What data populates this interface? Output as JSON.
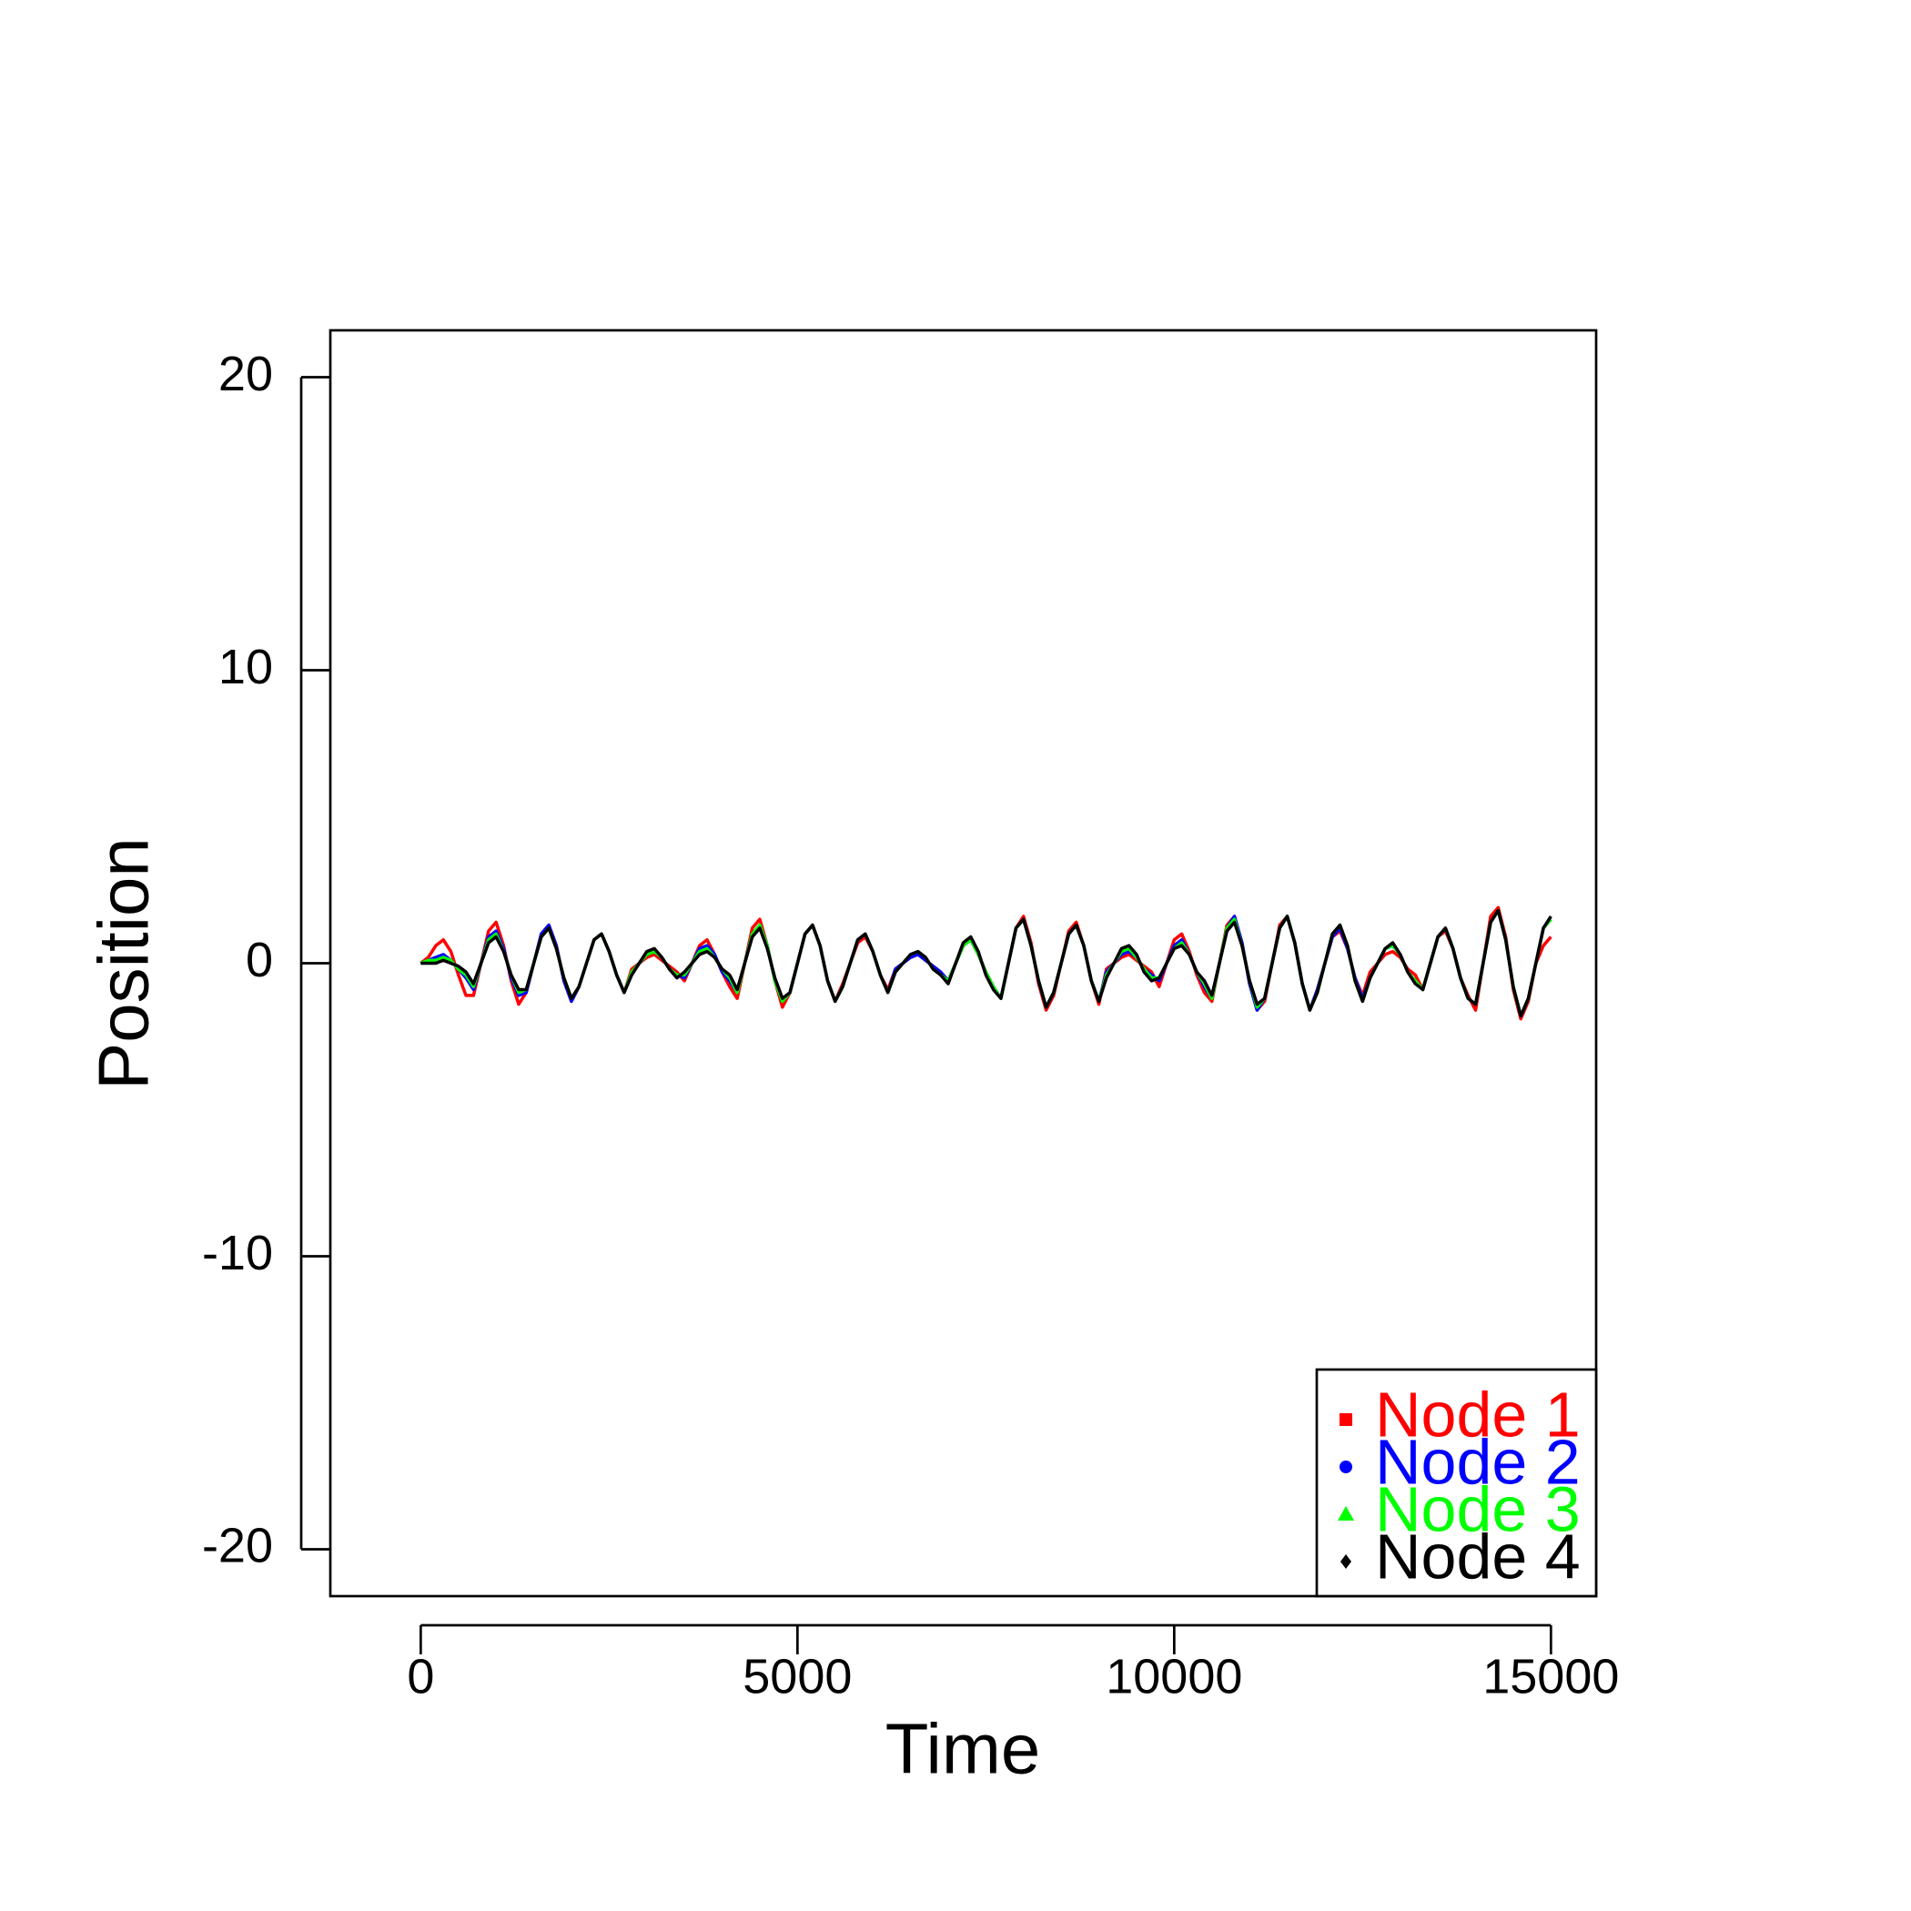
{
  "chart_data": {
    "type": "line",
    "x_label": "Time",
    "y_label": "Position",
    "x": [
      0,
      100,
      200,
      300,
      400,
      500,
      600,
      700,
      800,
      900,
      1000,
      1100,
      1200,
      1300,
      1400,
      1500,
      1600,
      1700,
      1800,
      1900,
      2000,
      2100,
      2200,
      2300,
      2400,
      2500,
      2600,
      2700,
      2800,
      2900,
      3000,
      3100,
      3200,
      3300,
      3400,
      3500,
      3600,
      3700,
      3800,
      3900,
      4000,
      4100,
      4200,
      4300,
      4400,
      4500,
      4600,
      4700,
      4800,
      4900,
      5000,
      5100,
      5200,
      5300,
      5400,
      5500,
      5600,
      5700,
      5800,
      5900,
      6000,
      6100,
      6200,
      6300,
      6400,
      6500,
      6600,
      6700,
      6800,
      6900,
      7000,
      7100,
      7200,
      7300,
      7400,
      7500,
      7600,
      7700,
      7800,
      7900,
      8000,
      8100,
      8200,
      8300,
      8400,
      8500,
      8600,
      8700,
      8800,
      8900,
      9000,
      9100,
      9200,
      9300,
      9400,
      9500,
      9600,
      9700,
      9800,
      9900,
      10000,
      10100,
      10200,
      10300,
      10400,
      10500,
      10600,
      10700,
      10800,
      10900,
      11000,
      11100,
      11200,
      11300,
      11400,
      11500,
      11600,
      11700,
      11800,
      11900,
      12000,
      12100,
      12200,
      12300,
      12400,
      12500,
      12600,
      12700,
      12800,
      12900,
      13000,
      13100,
      13200,
      13300,
      13400,
      13500,
      13600,
      13700,
      13800,
      13900,
      14000,
      14100,
      14200,
      14300,
      14400,
      14500,
      14600,
      14700,
      14800,
      14900,
      15000
    ],
    "series": [
      {
        "name": "Node 1",
        "color": "#ff0000",
        "values": [
          0,
          0.2,
          0.6,
          0.8,
          0.4,
          -0.4,
          -1.1,
          -1.1,
          0,
          1.1,
          1.4,
          0.6,
          -0.6,
          -1.4,
          -1.0,
          0,
          1.0,
          1.3,
          0.6,
          -0.6,
          -1.3,
          -0.8,
          0,
          0.8,
          1.0,
          0.4,
          -0.4,
          -1.0,
          -0.2,
          0,
          0.2,
          0.3,
          0.1,
          -0.1,
          -0.3,
          -0.6,
          0,
          0.6,
          0.8,
          0.3,
          -0.3,
          -0.8,
          -1.2,
          0,
          1.2,
          1.5,
          0.6,
          -0.6,
          -1.5,
          -1.0,
          0,
          1.0,
          1.3,
          0.6,
          -0.6,
          -1.3,
          -0.7,
          0,
          0.7,
          0.9,
          0.4,
          -0.4,
          -0.9,
          -0.2,
          0,
          0.2,
          0.3,
          0.1,
          -0.1,
          -0.3,
          -0.6,
          0,
          0.6,
          0.8,
          0.3,
          -0.3,
          -0.8,
          -1.2,
          0,
          1.2,
          1.6,
          0.7,
          -0.7,
          -1.6,
          -1.1,
          0,
          1.1,
          1.4,
          0.6,
          -0.6,
          -1.4,
          -0.2,
          0,
          0.2,
          0.3,
          0.1,
          -0.1,
          -0.3,
          -0.8,
          0,
          0.8,
          1.0,
          0.4,
          -0.4,
          -1.0,
          -1.3,
          0,
          1.3,
          1.6,
          0.7,
          -0.7,
          -1.6,
          -1.3,
          0,
          1.3,
          1.6,
          0.7,
          -0.7,
          -1.6,
          -0.9,
          0,
          0.9,
          1.1,
          0.5,
          -0.5,
          -1.1,
          -0.3,
          0,
          0.3,
          0.4,
          0.2,
          -0.2,
          -0.4,
          -0.9,
          0,
          0.9,
          1.1,
          0.5,
          -0.5,
          -1.1,
          -1.6,
          0,
          1.6,
          1.9,
          0.9,
          -0.9,
          -1.9,
          -1.3,
          0,
          0.6,
          0.9
        ]
      },
      {
        "name": "Node 2",
        "color": "#0000ff",
        "values": [
          0,
          0.1,
          0.2,
          0.3,
          0.1,
          -0.2,
          -0.5,
          -0.9,
          0,
          0.9,
          1.1,
          0.5,
          -0.5,
          -1.1,
          -1.0,
          0,
          1.0,
          1.3,
          0.6,
          -0.6,
          -1.3,
          -0.8,
          0,
          0.8,
          1.0,
          0.4,
          -0.4,
          -1.0,
          -0.3,
          0,
          0.3,
          0.4,
          0.2,
          -0.2,
          -0.4,
          -0.5,
          0,
          0.5,
          0.6,
          0.3,
          -0.3,
          -0.6,
          -1.0,
          0,
          1.0,
          1.3,
          0.6,
          -0.6,
          -1.3,
          -1.0,
          0,
          1.0,
          1.3,
          0.6,
          -0.6,
          -1.3,
          -0.8,
          0,
          0.8,
          1.0,
          0.4,
          -0.4,
          -1.0,
          -0.2,
          0,
          0.2,
          0.3,
          0.1,
          -0.1,
          -0.3,
          -0.6,
          0,
          0.6,
          0.8,
          0.3,
          -0.3,
          -0.8,
          -1.2,
          0,
          1.2,
          1.5,
          0.6,
          -0.6,
          -1.5,
          -1.0,
          0,
          1.0,
          1.3,
          0.6,
          -0.6,
          -1.3,
          -0.3,
          0,
          0.3,
          0.4,
          0.2,
          -0.2,
          -0.4,
          -0.6,
          0,
          0.6,
          0.8,
          0.3,
          -0.3,
          -0.8,
          -1.2,
          0,
          1.2,
          1.6,
          0.7,
          -0.7,
          -1.6,
          -1.2,
          0,
          1.2,
          1.6,
          0.7,
          -0.7,
          -1.6,
          -0.9,
          0,
          0.9,
          1.2,
          0.5,
          -0.5,
          -1.2,
          -0.5,
          0,
          0.5,
          0.6,
          0.3,
          -0.3,
          -0.6,
          -0.9,
          0,
          0.9,
          1.2,
          0.5,
          -0.5,
          -1.2,
          -1.4,
          0,
          1.4,
          1.8,
          0.8,
          -0.8,
          -1.8,
          -1.2,
          0,
          1.2,
          1.5
        ]
      },
      {
        "name": "Node 3",
        "color": "#00ff00",
        "values": [
          0,
          0.1,
          0.1,
          0.2,
          0.1,
          -0.2,
          -0.4,
          -0.8,
          0,
          0.8,
          1.0,
          0.4,
          -0.4,
          -1.0,
          -0.9,
          0,
          0.9,
          1.2,
          0.5,
          -0.5,
          -1.2,
          -0.8,
          0,
          0.8,
          1.0,
          0.4,
          -0.4,
          -1.0,
          -0.3,
          0,
          0.3,
          0.4,
          0.2,
          -0.2,
          -0.4,
          -0.4,
          0,
          0.4,
          0.5,
          0.2,
          -0.2,
          -0.5,
          -1.0,
          0,
          1.0,
          1.3,
          0.6,
          -0.6,
          -1.3,
          -1.0,
          0,
          1.0,
          1.3,
          0.6,
          -0.6,
          -1.3,
          -0.8,
          0,
          0.8,
          1.0,
          0.4,
          -0.4,
          -1.0,
          -0.3,
          0,
          0.3,
          0.4,
          0.2,
          -0.2,
          -0.4,
          -0.6,
          0,
          0.6,
          0.8,
          0.3,
          -0.3,
          -0.8,
          -1.2,
          0,
          1.2,
          1.5,
          0.6,
          -0.6,
          -1.5,
          -1.0,
          0,
          1.0,
          1.3,
          0.6,
          -0.6,
          -1.3,
          -0.4,
          0,
          0.4,
          0.5,
          0.2,
          -0.2,
          -0.5,
          -0.5,
          0,
          0.5,
          0.7,
          0.3,
          -0.3,
          -0.7,
          -1.2,
          0,
          1.2,
          1.5,
          0.6,
          -0.6,
          -1.5,
          -1.2,
          0,
          1.2,
          1.6,
          0.7,
          -0.7,
          -1.6,
          -1.0,
          0,
          1.0,
          1.3,
          0.6,
          -0.6,
          -1.3,
          -0.5,
          0,
          0.5,
          0.6,
          0.3,
          -0.3,
          -0.6,
          -0.9,
          0,
          0.9,
          1.2,
          0.5,
          -0.5,
          -1.2,
          -1.4,
          0,
          1.4,
          1.8,
          0.8,
          -0.8,
          -1.8,
          -1.2,
          0,
          1.2,
          1.5
        ]
      },
      {
        "name": "Node 4",
        "color": "#000000",
        "values": [
          0,
          0,
          0,
          0.1,
          0,
          -0.1,
          -0.3,
          -0.7,
          0,
          0.7,
          0.9,
          0.4,
          -0.4,
          -0.9,
          -0.9,
          0,
          0.9,
          1.2,
          0.5,
          -0.5,
          -1.2,
          -0.8,
          0,
          0.8,
          1.0,
          0.4,
          -0.4,
          -1.0,
          -0.4,
          0,
          0.4,
          0.5,
          0.2,
          -0.2,
          -0.5,
          -0.3,
          0,
          0.3,
          0.4,
          0.2,
          -0.2,
          -0.4,
          -0.9,
          0,
          0.9,
          1.2,
          0.5,
          -0.5,
          -1.2,
          -1.0,
          0,
          1.0,
          1.3,
          0.6,
          -0.6,
          -1.3,
          -0.8,
          0,
          0.8,
          1.0,
          0.4,
          -0.4,
          -1.0,
          -0.3,
          0,
          0.3,
          0.4,
          0.2,
          -0.2,
          -0.4,
          -0.7,
          0,
          0.7,
          0.9,
          0.4,
          -0.4,
          -0.9,
          -1.2,
          0,
          1.2,
          1.5,
          0.6,
          -0.6,
          -1.5,
          -1.0,
          0,
          1.0,
          1.3,
          0.6,
          -0.6,
          -1.3,
          -0.5,
          0,
          0.5,
          0.6,
          0.3,
          -0.3,
          -0.6,
          -0.5,
          0,
          0.5,
          0.6,
          0.3,
          -0.3,
          -0.6,
          -1.1,
          0,
          1.1,
          1.4,
          0.6,
          -0.6,
          -1.4,
          -1.2,
          0,
          1.2,
          1.6,
          0.7,
          -0.7,
          -1.6,
          -1.0,
          0,
          1.0,
          1.3,
          0.6,
          -0.6,
          -1.3,
          -0.5,
          0,
          0.5,
          0.7,
          0.3,
          -0.3,
          -0.7,
          -0.9,
          0,
          0.9,
          1.2,
          0.5,
          -0.5,
          -1.2,
          -1.4,
          0,
          1.4,
          1.8,
          0.8,
          -0.8,
          -1.8,
          -1.2,
          0,
          1.2,
          1.6
        ]
      }
    ],
    "xlim": [
      -1200,
      15600
    ],
    "ylim": [
      -21.6,
      21.6
    ],
    "xticks": [
      0,
      5000,
      10000,
      15000
    ],
    "yticks": [
      -20,
      -10,
      0,
      10,
      20
    ],
    "legend": "bottomright"
  }
}
